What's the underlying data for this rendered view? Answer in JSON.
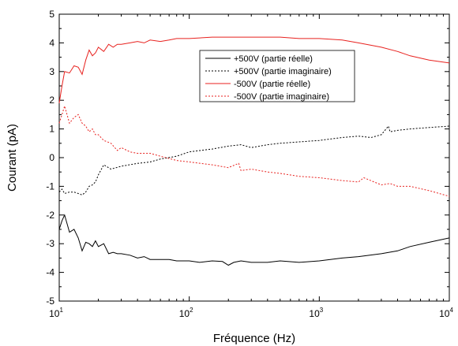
{
  "chart_data": {
    "type": "line",
    "xlabel": "Fréquence (Hz)",
    "ylabel": "Courant (pA)",
    "xscale": "log",
    "xlim": [
      10,
      10000
    ],
    "ylim": [
      -5,
      5
    ],
    "x_ticks": [
      {
        "value": 10,
        "base": "10",
        "exp": "1"
      },
      {
        "value": 100,
        "base": "10",
        "exp": "2"
      },
      {
        "value": 1000,
        "base": "10",
        "exp": "3"
      },
      {
        "value": 10000,
        "base": "10",
        "exp": "4"
      }
    ],
    "y_ticks": [
      -5,
      -4,
      -3,
      -2,
      -1,
      0,
      1,
      2,
      3,
      4,
      5
    ],
    "grid": false,
    "legend_position": "top-right",
    "series": [
      {
        "name": "+500V (partie réelle)",
        "color": "#000000",
        "dash": "solid",
        "x": [
          10,
          10.5,
          11,
          12,
          13,
          14,
          15,
          16,
          17,
          18,
          19,
          20,
          22,
          24,
          26,
          28,
          30,
          35,
          40,
          45,
          50,
          60,
          70,
          80,
          100,
          120,
          150,
          180,
          200,
          220,
          250,
          300,
          400,
          500,
          700,
          1000,
          1500,
          2000,
          3000,
          4000,
          5000,
          7000,
          10000
        ],
        "y": [
          -2.5,
          -2.2,
          -2.0,
          -2.6,
          -2.5,
          -2.8,
          -3.25,
          -2.95,
          -3.0,
          -3.1,
          -2.9,
          -3.1,
          -3.0,
          -3.35,
          -3.3,
          -3.35,
          -3.35,
          -3.4,
          -3.5,
          -3.45,
          -3.55,
          -3.55,
          -3.55,
          -3.6,
          -3.6,
          -3.65,
          -3.6,
          -3.62,
          -3.75,
          -3.65,
          -3.6,
          -3.65,
          -3.65,
          -3.6,
          -3.65,
          -3.6,
          -3.5,
          -3.45,
          -3.35,
          -3.25,
          -3.1,
          -2.95,
          -2.8
        ]
      },
      {
        "name": "+500V (partie imaginaire)",
        "color": "#000000",
        "dash": "dotted",
        "x": [
          10,
          10.5,
          11,
          12,
          13,
          14,
          15,
          16,
          17,
          18,
          19,
          20,
          22,
          25,
          30,
          40,
          50,
          60,
          80,
          100,
          150,
          200,
          250,
          300,
          400,
          500,
          700,
          1000,
          1500,
          2000,
          2500,
          3000,
          3400,
          3500,
          4000,
          5000,
          7000,
          10000
        ],
        "y": [
          -1.2,
          -1.1,
          -1.25,
          -1.2,
          -1.2,
          -1.25,
          -1.3,
          -1.2,
          -1.0,
          -0.95,
          -0.85,
          -0.6,
          -0.25,
          -0.4,
          -0.3,
          -0.2,
          -0.15,
          -0.05,
          0.05,
          0.2,
          0.3,
          0.4,
          0.45,
          0.35,
          0.45,
          0.5,
          0.55,
          0.6,
          0.7,
          0.75,
          0.7,
          0.8,
          1.1,
          0.9,
          0.95,
          1.0,
          1.05,
          1.1
        ]
      },
      {
        "name": "-500V (partie réelle)",
        "color": "#e8221f",
        "dash": "solid",
        "x": [
          10,
          10.5,
          11,
          12,
          13,
          14,
          15,
          16,
          17,
          18,
          19,
          20,
          22,
          24,
          26,
          28,
          30,
          35,
          40,
          45,
          50,
          60,
          70,
          80,
          100,
          150,
          200,
          300,
          400,
          500,
          700,
          1000,
          1500,
          2000,
          3000,
          4000,
          5000,
          7000,
          10000
        ],
        "y": [
          1.9,
          2.5,
          3.0,
          2.95,
          3.2,
          3.15,
          2.9,
          3.4,
          3.75,
          3.55,
          3.65,
          3.85,
          3.7,
          3.95,
          3.85,
          3.95,
          3.95,
          4.0,
          4.05,
          4.0,
          4.1,
          4.05,
          4.1,
          4.15,
          4.15,
          4.2,
          4.2,
          4.2,
          4.2,
          4.2,
          4.15,
          4.15,
          4.1,
          4.0,
          3.85,
          3.7,
          3.55,
          3.4,
          3.3
        ]
      },
      {
        "name": "-500V (partie imaginaire)",
        "color": "#e8221f",
        "dash": "dotted",
        "x": [
          10,
          10.5,
          11,
          12,
          13,
          14,
          15,
          16,
          17,
          18,
          19,
          20,
          22,
          25,
          28,
          30,
          35,
          40,
          50,
          60,
          80,
          100,
          150,
          200,
          240,
          250,
          300,
          400,
          500,
          700,
          1000,
          1500,
          2000,
          2200,
          3000,
          3500,
          4000,
          5000,
          7000,
          10000
        ],
        "y": [
          1.2,
          1.5,
          1.8,
          1.2,
          1.4,
          1.5,
          1.2,
          1.1,
          0.9,
          1.0,
          0.8,
          0.8,
          0.6,
          0.5,
          0.25,
          0.35,
          0.2,
          0.15,
          0.15,
          0.05,
          -0.1,
          -0.15,
          -0.25,
          -0.35,
          -0.2,
          -0.45,
          -0.4,
          -0.5,
          -0.55,
          -0.65,
          -0.7,
          -0.8,
          -0.85,
          -0.7,
          -0.95,
          -0.9,
          -1.0,
          -1.0,
          -1.15,
          -1.35
        ]
      }
    ]
  }
}
